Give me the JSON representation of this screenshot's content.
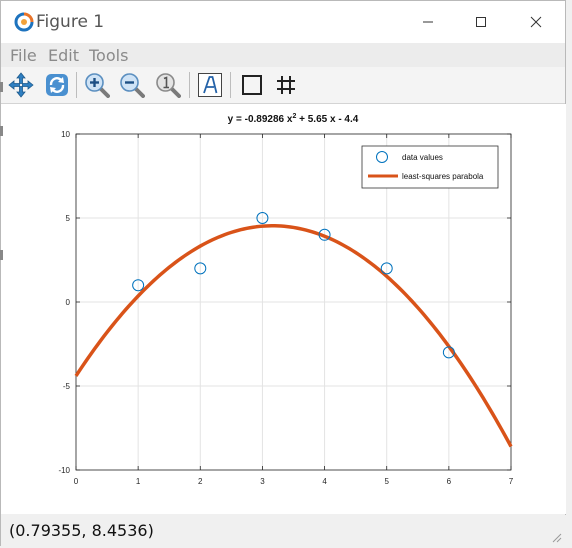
{
  "window": {
    "title": "Figure 1",
    "minimize_symbol": "—",
    "maximize_symbol": "☐",
    "close_symbol": "✕"
  },
  "menu": [
    {
      "label": "File"
    },
    {
      "label": "Edit"
    },
    {
      "label": "Tools"
    }
  ],
  "toolbar": {
    "tools": [
      "pan-icon",
      "rotate-icon",
      "zoom-in-icon",
      "zoom-out-icon",
      "reset-view-icon",
      "insert-text-icon",
      "box-icon",
      "grid-icon"
    ]
  },
  "status": {
    "coordinates": "(0.79355, 8.4536)"
  },
  "colors": {
    "fit_line": "#d95319",
    "markers": "#0072bd"
  },
  "chart_data": {
    "type": "scatter",
    "title_prefix": "y = -0.89286 x",
    "title_superscript": "2",
    "title_suffix": " + 5.65 x - 4.4",
    "xlim": [
      0,
      7
    ],
    "ylim": [
      -10,
      10
    ],
    "xticks": [
      0,
      1,
      2,
      3,
      4,
      5,
      6,
      7
    ],
    "yticks": [
      -10,
      -5,
      0,
      5,
      10
    ],
    "xtick_labels": [
      "0",
      "1",
      "2",
      "3",
      "4",
      "5",
      "6",
      "7"
    ],
    "ytick_labels": [
      "-10",
      "-5",
      "0",
      "5",
      "10"
    ],
    "grid": true,
    "legend_position": "top-right",
    "series": [
      {
        "name": "data values",
        "kind": "markers",
        "x": [
          1,
          2,
          3,
          4,
          5,
          6
        ],
        "y": [
          1,
          2,
          5,
          4,
          2,
          -3
        ]
      },
      {
        "name": "least-squares parabola",
        "kind": "line",
        "coefficients": [
          -0.89286,
          5.65,
          -4.4
        ],
        "x_range": [
          0,
          7
        ]
      }
    ]
  }
}
